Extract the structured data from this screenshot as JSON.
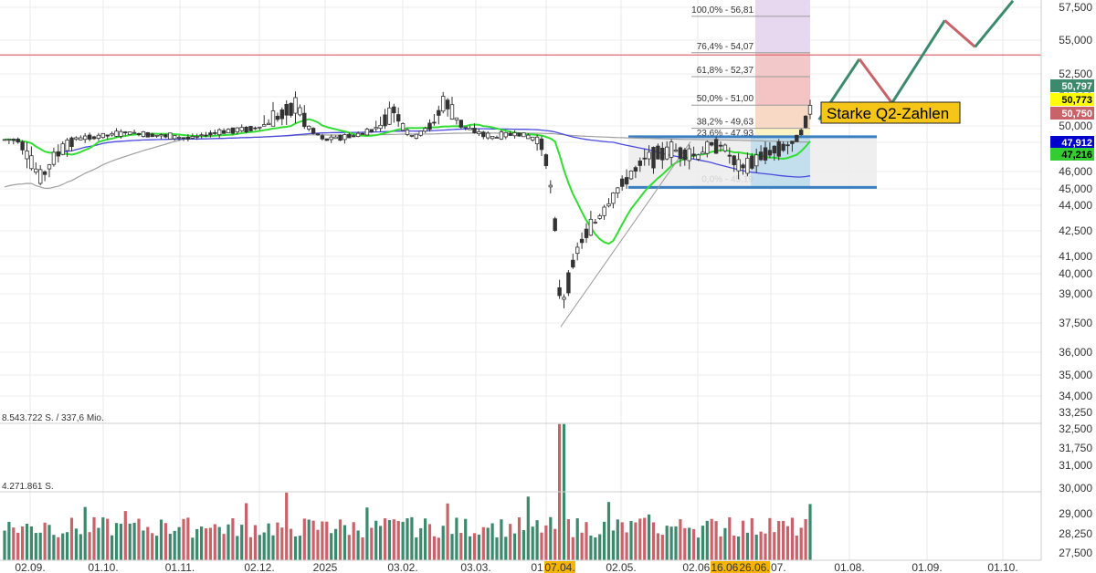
{
  "chart_data": {
    "type": "candlestick",
    "x_ticks": [
      "02.09.",
      "01.10.",
      "01.11.",
      "02.12.",
      "2025",
      "03.02.",
      "03.03.",
      "01.04.",
      "02.05.",
      "02.06.",
      "01.07.",
      "01.08.",
      "01.09.",
      "01.10."
    ],
    "y_ticks": [
      "57,500",
      "55,000",
      "52,500",
      "51,000",
      "50,000",
      "47,500",
      "46,000",
      "45,000",
      "44,000",
      "42,500",
      "41,000",
      "40,000",
      "39,000",
      "37,500",
      "36,000",
      "35,000",
      "34,000",
      "33,250",
      "32,500",
      "31,750",
      "31,000",
      "30,000",
      "29,000",
      "28,250",
      "27,500"
    ],
    "price_tags": [
      {
        "label": "50,797",
        "color": "#3c8a6e",
        "text_color": "#ffffff"
      },
      {
        "label": "50,773",
        "color": "#ffff00",
        "text_color": "#000000"
      },
      {
        "label": "50,750",
        "color": "#c8636a",
        "text_color": "#ffffff"
      },
      {
        "label": "47,912",
        "color": "#0000cc",
        "text_color": "#ffffff"
      },
      {
        "label": "47,216",
        "color": "#33cc33",
        "text_color": "#000000"
      }
    ],
    "highlight_dates": [
      "07.04.",
      "16.06.",
      "26.06."
    ],
    "fibonacci": [
      {
        "label": "100,0% - 56,81",
        "value": 56.81
      },
      {
        "label": "76,4% - 54,07",
        "value": 54.07
      },
      {
        "label": "61,8% - 52,37",
        "value": 52.37
      },
      {
        "label": "50,0% - 51,00",
        "value": 51.0
      },
      {
        "label": "38,2% - 49,63",
        "value": 49.63
      },
      {
        "label": "23,6% - 47,93",
        "value": 47.93
      },
      {
        "label": "0,0% - 45,19",
        "value": 45.19
      }
    ],
    "annotation": "Starke Q2-Zahlen",
    "volume_labels": [
      "8.543.722 S. / 337,6 Mio.",
      "4.271.861 S."
    ],
    "resistance_level": 53.9,
    "range_box": {
      "top": 47.93,
      "bottom": 45.19
    },
    "projection": [
      {
        "date": "2025-07-20",
        "value": 50.3
      },
      {
        "date": "2025-08-05",
        "value": 53.6
      },
      {
        "date": "2025-08-18",
        "value": 51.1
      },
      {
        "date": "2025-09-08",
        "value": 56.5
      },
      {
        "date": "2025-09-20",
        "value": 54.5
      },
      {
        "date": "2025-10-05",
        "value": 58.0
      }
    ],
    "closes": [
      {
        "date": "2024-08-28",
        "value": 47.9
      },
      {
        "date": "2024-09-06",
        "value": 45.6
      },
      {
        "date": "2024-09-13",
        "value": 46.9
      },
      {
        "date": "2024-09-20",
        "value": 48.0
      },
      {
        "date": "2024-09-30",
        "value": 48.4
      },
      {
        "date": "2024-10-11",
        "value": 49.0
      },
      {
        "date": "2024-10-25",
        "value": 48.5
      },
      {
        "date": "2024-11-05",
        "value": 48.1
      },
      {
        "date": "2024-11-15",
        "value": 49.0
      },
      {
        "date": "2024-11-29",
        "value": 49.6
      },
      {
        "date": "2024-12-10",
        "value": 50.4
      },
      {
        "date": "2024-12-20",
        "value": 51.0
      },
      {
        "date": "2025-01-02",
        "value": 47.9
      },
      {
        "date": "2025-01-17",
        "value": 48.7
      },
      {
        "date": "2025-01-31",
        "value": 50.9
      },
      {
        "date": "2025-02-07",
        "value": 48.2
      },
      {
        "date": "2025-02-19",
        "value": 51.2
      },
      {
        "date": "2025-02-28",
        "value": 49.6
      },
      {
        "date": "2025-03-10",
        "value": 48.2
      },
      {
        "date": "2025-03-20",
        "value": 48.9
      },
      {
        "date": "2025-03-31",
        "value": 47.5
      },
      {
        "date": "2025-04-04",
        "value": 44.1
      },
      {
        "date": "2025-04-07",
        "value": 38.2
      },
      {
        "date": "2025-04-15",
        "value": 41.8
      },
      {
        "date": "2025-04-25",
        "value": 43.7
      },
      {
        "date": "2025-05-02",
        "value": 45.2
      },
      {
        "date": "2025-05-12",
        "value": 46.7
      },
      {
        "date": "2025-05-23",
        "value": 47.1
      },
      {
        "date": "2025-06-02",
        "value": 46.8
      },
      {
        "date": "2025-06-10",
        "value": 47.6
      },
      {
        "date": "2025-06-19",
        "value": 46.1
      },
      {
        "date": "2025-06-30",
        "value": 47.0
      },
      {
        "date": "2025-07-10",
        "value": 47.5
      },
      {
        "date": "2025-07-16",
        "value": 50.75
      }
    ],
    "volume": {
      "ylim": [
        0,
        8.543722
      ],
      "unit": "Mio. Stück",
      "reference_level": 4.271861
    }
  }
}
